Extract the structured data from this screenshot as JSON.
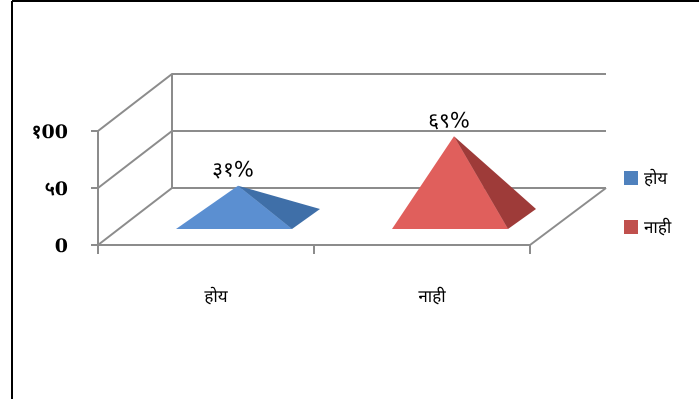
{
  "chart_data": {
    "type": "bar",
    "shape": "3d-pyramid",
    "categories": [
      "होय",
      "नाही"
    ],
    "values": [
      31,
      69
    ],
    "data_labels": [
      "३१%",
      "६९%"
    ],
    "y_tick_labels": [
      "0",
      "५0",
      "१00"
    ],
    "y_ticks": [
      0,
      50,
      100
    ],
    "ylim": [
      0,
      100
    ],
    "grid": true,
    "legend": {
      "placement": "right",
      "entries": [
        "होय",
        "नाही"
      ]
    },
    "colors": {
      "series": [
        "#4F81BD",
        "#C0504D"
      ],
      "front": [
        "#5B8FD1",
        "#E05F5C"
      ],
      "side": [
        "#3F6FA8",
        "#9E3B39"
      ],
      "grid": "#8C8C8C"
    }
  }
}
